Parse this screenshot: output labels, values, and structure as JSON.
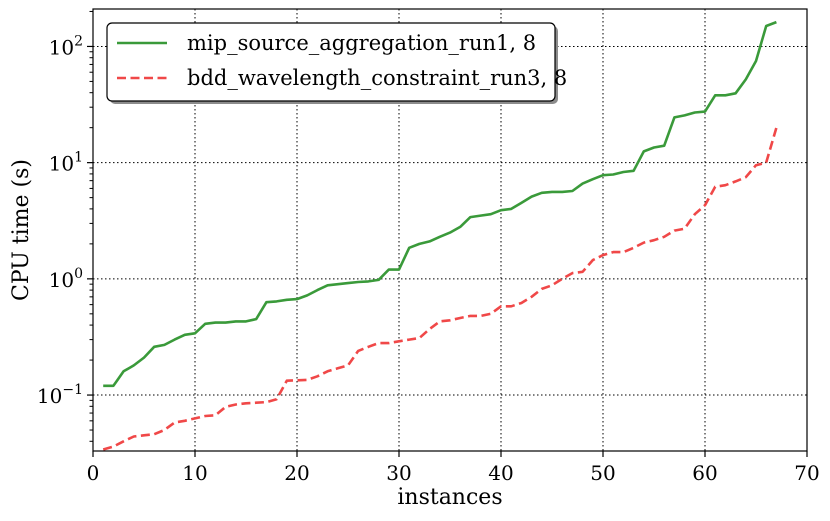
{
  "chart_data": {
    "type": "line",
    "xlabel": "instances",
    "ylabel": "CPU time (s)",
    "xlim": [
      0,
      70
    ],
    "ylim": [
      0.033,
      210
    ],
    "yscale": "log",
    "x_ticks": [
      0,
      10,
      20,
      30,
      40,
      50,
      60,
      70
    ],
    "x_tick_labels": [
      "0",
      "10",
      "20",
      "30",
      "40",
      "50",
      "60",
      "70"
    ],
    "y_ticks": [
      0.1,
      1,
      10,
      100
    ],
    "y_tick_labels": [
      {
        "base": "10",
        "exp": "−1"
      },
      {
        "base": "10",
        "exp": "0"
      },
      {
        "base": "10",
        "exp": "1"
      },
      {
        "base": "10",
        "exp": "2"
      }
    ],
    "grid": true,
    "legend_position": "top-left",
    "series": [
      {
        "name": "mip_source_aggregation_run1, 8",
        "color": "#3a9a3a",
        "style": "solid",
        "x": [
          1,
          2,
          3,
          4,
          5,
          6,
          7,
          8,
          9,
          10,
          11,
          12,
          13,
          14,
          15,
          16,
          17,
          18,
          19,
          20,
          21,
          22,
          23,
          24,
          25,
          26,
          27,
          28,
          29,
          30,
          31,
          32,
          33,
          34,
          35,
          36,
          37,
          38,
          39,
          40,
          41,
          42,
          43,
          44,
          45,
          46,
          47,
          48,
          49,
          50,
          51,
          52,
          53,
          54,
          55,
          56,
          57,
          58,
          59,
          60,
          61,
          62,
          63,
          64,
          65,
          66,
          67
        ],
        "values": [
          0.12,
          0.12,
          0.16,
          0.18,
          0.21,
          0.26,
          0.27,
          0.3,
          0.33,
          0.34,
          0.41,
          0.42,
          0.42,
          0.43,
          0.43,
          0.45,
          0.63,
          0.64,
          0.66,
          0.67,
          0.72,
          0.8,
          0.88,
          0.9,
          0.92,
          0.94,
          0.95,
          0.98,
          1.2,
          1.2,
          1.85,
          2.0,
          2.1,
          2.3,
          2.5,
          2.8,
          3.4,
          3.5,
          3.6,
          3.9,
          4.0,
          4.5,
          5.1,
          5.5,
          5.6,
          5.6,
          5.7,
          6.6,
          7.2,
          7.8,
          7.9,
          8.3,
          8.5,
          12.5,
          13.5,
          14.0,
          24.5,
          25.5,
          27.0,
          27.5,
          38.0,
          38.0,
          39.5,
          52.0,
          75.0,
          150.0,
          162.0
        ]
      },
      {
        "name": "bdd_wavelength_constraint_run3, 8",
        "color": "#f04848",
        "style": "dashed",
        "x": [
          1,
          2,
          3,
          4,
          5,
          6,
          7,
          8,
          9,
          10,
          11,
          12,
          13,
          14,
          15,
          16,
          17,
          18,
          19,
          20,
          21,
          22,
          23,
          24,
          25,
          26,
          27,
          28,
          29,
          30,
          31,
          32,
          33,
          34,
          35,
          36,
          37,
          38,
          39,
          40,
          41,
          42,
          43,
          44,
          45,
          46,
          47,
          48,
          49,
          50,
          51,
          52,
          53,
          54,
          55,
          56,
          57,
          58,
          59,
          60,
          61,
          62,
          63,
          64,
          65,
          66,
          67
        ],
        "values": [
          0.034,
          0.036,
          0.04,
          0.044,
          0.045,
          0.046,
          0.05,
          0.058,
          0.06,
          0.063,
          0.066,
          0.067,
          0.079,
          0.083,
          0.085,
          0.086,
          0.087,
          0.092,
          0.133,
          0.134,
          0.135,
          0.145,
          0.16,
          0.17,
          0.18,
          0.24,
          0.26,
          0.28,
          0.28,
          0.29,
          0.3,
          0.31,
          0.37,
          0.43,
          0.44,
          0.46,
          0.48,
          0.48,
          0.5,
          0.58,
          0.58,
          0.62,
          0.7,
          0.82,
          0.88,
          1.0,
          1.12,
          1.15,
          1.45,
          1.6,
          1.7,
          1.7,
          1.85,
          2.05,
          2.15,
          2.3,
          2.6,
          2.7,
          3.6,
          4.3,
          6.2,
          6.4,
          6.9,
          7.5,
          9.5,
          10.0,
          20.0
        ]
      }
    ]
  }
}
